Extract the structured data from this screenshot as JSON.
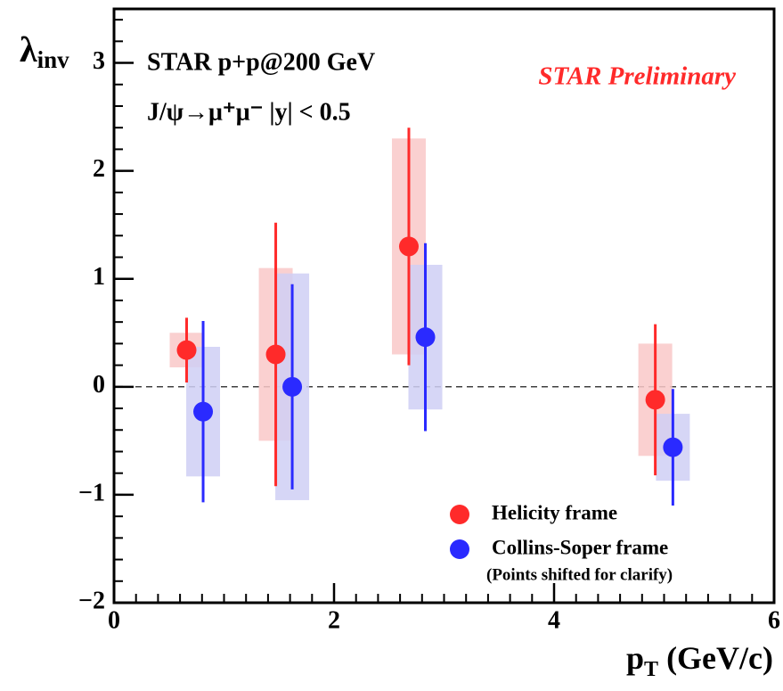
{
  "chart_data": {
    "type": "scatter",
    "title": "STAR p+p@200 GeV",
    "subtitle": "J/ψ→μ⁺μ⁻  |y| < 0.5",
    "watermark": "STAR Preliminary",
    "ylabel": {
      "symbol": "λ",
      "sub": "inv"
    },
    "xlabel": {
      "symbol": "p",
      "sub": "T",
      "unit": " (GeV/c)"
    },
    "note": "(Points shifted for clarify)",
    "xlim": [
      0,
      6
    ],
    "ylim": [
      -2,
      3.5
    ],
    "xticks": [
      0,
      2,
      4,
      6
    ],
    "yticks": [
      {
        "value": -2,
        "label": "−2"
      },
      {
        "value": -1,
        "label": "−1"
      },
      0,
      1,
      2,
      3
    ],
    "legend": "lower right",
    "series": [
      {
        "name": "Helicity frame",
        "color": "#ff2a2a",
        "box_color": "#f9c8c8",
        "x": [
          0.66,
          1.47,
          2.68,
          4.92
        ],
        "values": [
          0.34,
          0.3,
          1.3,
          -0.12
        ],
        "errors": [
          0.3,
          1.22,
          1.1,
          0.7
        ],
        "sys_errors": [
          0.16,
          0.8,
          1.0,
          0.52
        ]
      },
      {
        "name": "Collins-Soper frame",
        "color": "#2a2aff",
        "box_color": "#cfcff5",
        "x": [
          0.81,
          1.62,
          2.83,
          5.08
        ],
        "values": [
          -0.23,
          0.0,
          0.46,
          -0.56
        ],
        "errors": [
          0.84,
          0.95,
          0.87,
          0.54
        ],
        "sys_errors": [
          0.6,
          1.05,
          0.67,
          0.31
        ]
      }
    ]
  }
}
